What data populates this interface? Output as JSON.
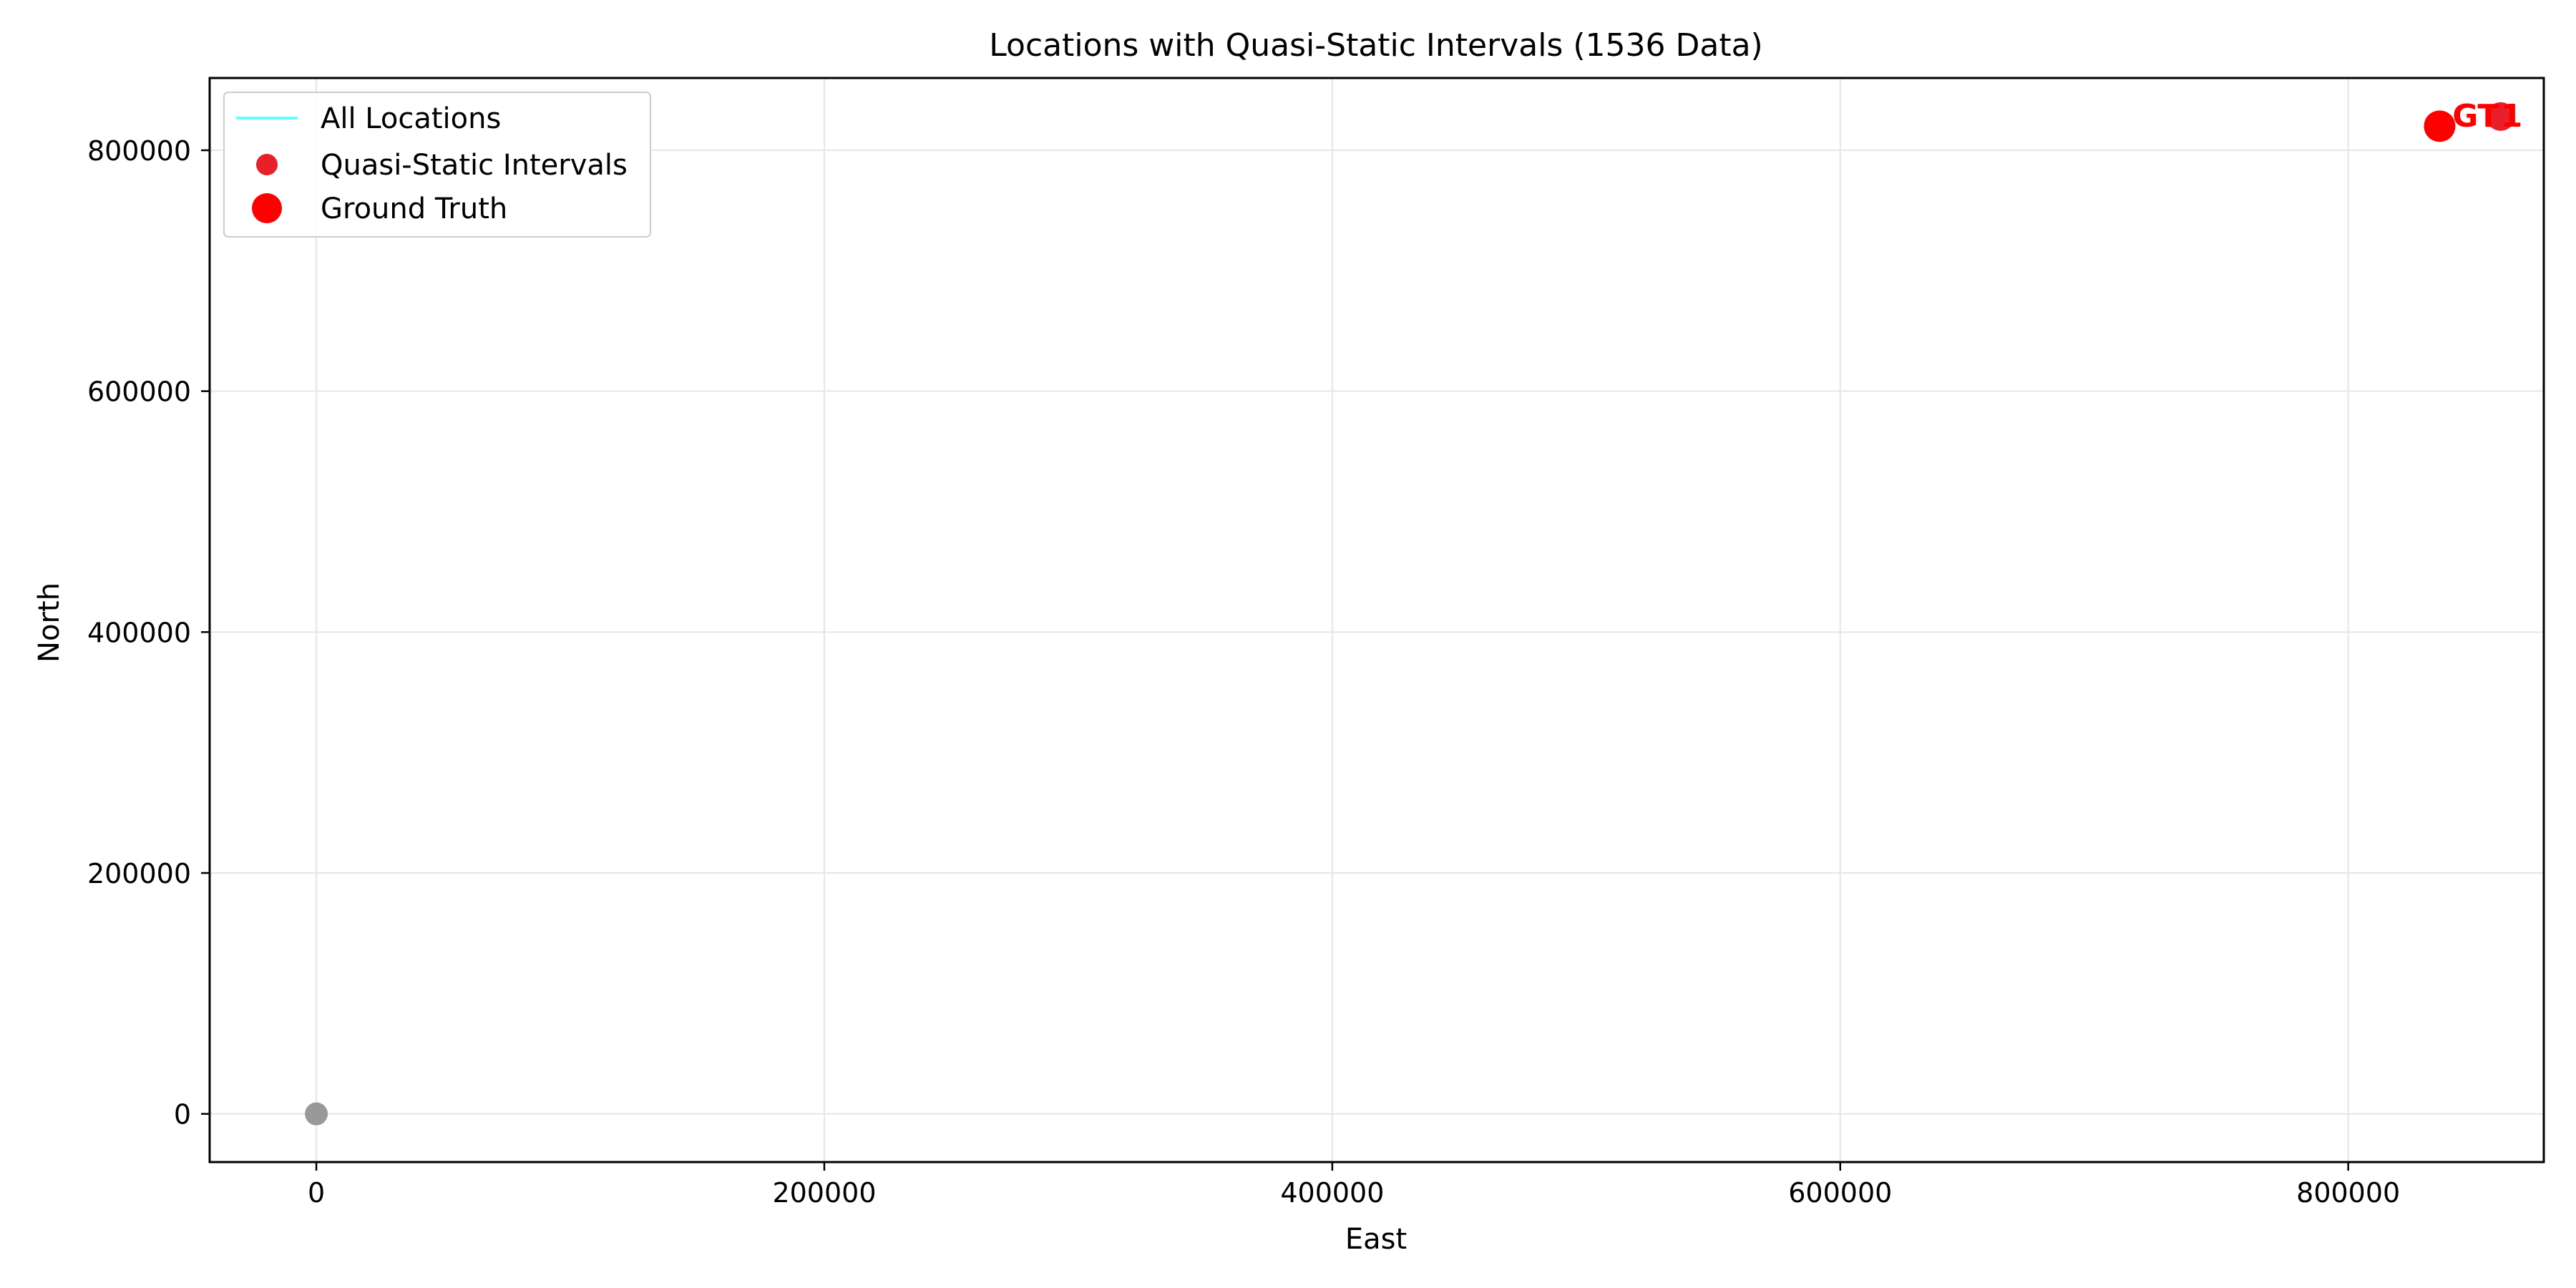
{
  "chart_data": {
    "type": "scatter",
    "title": "Locations with Quasi-Static Intervals (1536 Data)",
    "xlabel": "East",
    "ylabel": "North",
    "xlim": [
      -42000,
      877000
    ],
    "ylim": [
      -40000,
      860000
    ],
    "x_ticks": [
      0,
      200000,
      400000,
      600000,
      800000
    ],
    "y_ticks": [
      0,
      200000,
      400000,
      600000,
      800000
    ],
    "x_tick_labels": [
      "0",
      "200000",
      "400000",
      "600000",
      "800000"
    ],
    "y_tick_labels": [
      "0",
      "200000",
      "400000",
      "600000",
      "800000"
    ],
    "grid": true,
    "legend_position": "top-left",
    "series": [
      {
        "name": "All Locations",
        "kind": "line",
        "color": "#66ffff",
        "points": [
          [
            0,
            0
          ]
        ]
      },
      {
        "name": "Quasi-Static Intervals",
        "kind": "scatter",
        "color": "#e8202a",
        "points": [
          [
            860000,
            828000
          ]
        ]
      },
      {
        "name": "Ground Truth",
        "kind": "scatter",
        "color": "#ff0000",
        "points": [
          [
            836000,
            820000
          ]
        ]
      }
    ],
    "extra_points": [
      {
        "x": 0,
        "y": 0,
        "color": "#999999"
      }
    ],
    "annotations": [
      {
        "text": "GT",
        "x": 841000,
        "y": 828000,
        "color": "#ff0000"
      },
      {
        "text": "1",
        "x": 860000,
        "y": 828000,
        "color": "#ff0000"
      }
    ]
  }
}
